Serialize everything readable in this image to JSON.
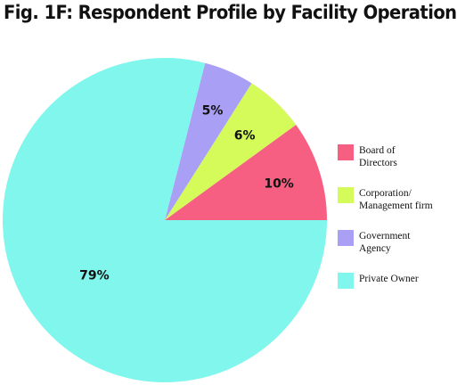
{
  "chart_data": {
    "type": "pie",
    "title": "Fig. 1F: Respondent Profile by Facility Operation",
    "start_angle_deg": 0,
    "direction": "counterclockwise",
    "legend_position": "right",
    "slices": [
      {
        "value": 10,
        "label": "10%",
        "legend": [
          "Board of",
          "Directors"
        ],
        "color": "#f75f82"
      },
      {
        "value": 6,
        "label": "6%",
        "legend": [
          "Corporation/",
          "Management firm"
        ],
        "color": "#d4fb5a"
      },
      {
        "value": 5,
        "label": "5%",
        "legend": [
          "Government",
          "Agency"
        ],
        "color": "#a99ff5"
      },
      {
        "value": 79,
        "label": "79%",
        "legend": [
          "Private Owner"
        ],
        "color": "#80f6ec"
      }
    ]
  }
}
